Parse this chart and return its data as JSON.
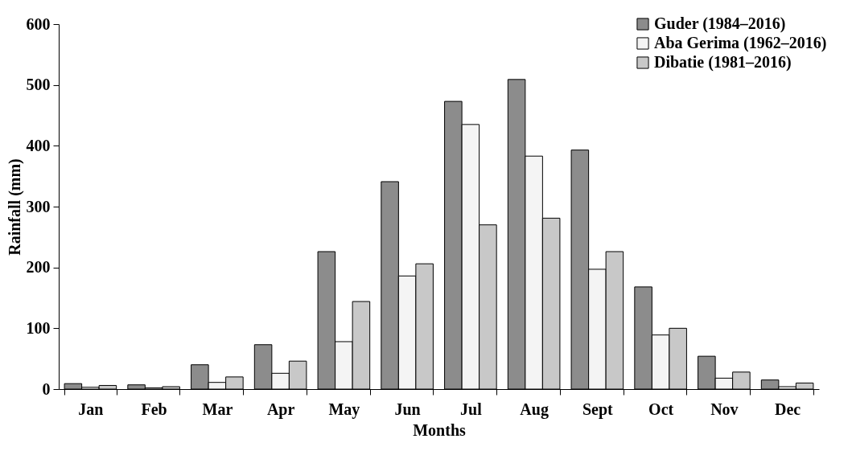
{
  "chart_data": {
    "type": "bar",
    "xlabel": "Months",
    "ylabel": "Rainfall (mm)",
    "categories": [
      "Jan",
      "Feb",
      "Mar",
      "Apr",
      "May",
      "Jun",
      "Jul",
      "Aug",
      "Sept",
      "Oct",
      "Nov",
      "Dec"
    ],
    "series": [
      {
        "name": "Guder (1984–2016)",
        "color": "#8c8c8c",
        "values": [
          9,
          7,
          40,
          73,
          226,
          341,
          473,
          509,
          393,
          168,
          54,
          15
        ]
      },
      {
        "name": "Aba Gerima (1962–2016)",
        "color": "#f4f4f4",
        "values": [
          3,
          2,
          11,
          26,
          78,
          186,
          435,
          383,
          197,
          89,
          18,
          4
        ]
      },
      {
        "name": "Dibatie (1981–2016)",
        "color": "#c8c8c8",
        "values": [
          6,
          4,
          20,
          46,
          144,
          206,
          270,
          281,
          226,
          100,
          28,
          10
        ]
      }
    ],
    "ylim": [
      0,
      600
    ],
    "yticks": [
      0,
      100,
      200,
      300,
      400,
      500,
      600
    ],
    "grid": false,
    "legend": "top right"
  }
}
